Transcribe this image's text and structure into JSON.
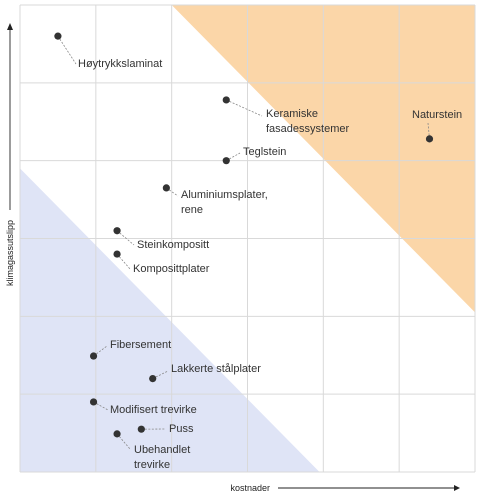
{
  "chart_data": {
    "type": "scatter",
    "title": "",
    "xlabel": "kostnader",
    "ylabel": "klimagassutslipp",
    "xlim": [
      0,
      6
    ],
    "ylim": [
      0,
      6
    ],
    "grid": true,
    "regions": [
      {
        "name": "high",
        "color": "#fbd6a8",
        "polygon": [
          [
            2.0,
            6.0
          ],
          [
            6.0,
            6.0
          ],
          [
            6.0,
            2.05
          ]
        ]
      },
      {
        "name": "low",
        "color": "#dfe4f6",
        "polygon": [
          [
            0.0,
            3.9
          ],
          [
            0.0,
            0.0
          ],
          [
            3.95,
            0.0
          ]
        ]
      }
    ],
    "points": [
      {
        "label": "Høytrykkslaminat",
        "x": 0.5,
        "y": 5.6
      },
      {
        "label": "Keramiske\nfasadessystemer",
        "x": 2.72,
        "y": 4.78
      },
      {
        "label": "Naturstein",
        "x": 5.4,
        "y": 4.28
      },
      {
        "label": "Teglstein",
        "x": 2.72,
        "y": 4.0
      },
      {
        "label": "Aluminiumsplater,\nrene",
        "x": 1.93,
        "y": 3.65
      },
      {
        "label": "Steinkompositt",
        "x": 1.28,
        "y": 3.1
      },
      {
        "label": "Komposittplater",
        "x": 1.28,
        "y": 2.8
      },
      {
        "label": "Fibersement",
        "x": 0.97,
        "y": 1.49
      },
      {
        "label": "Lakkerte stålplater",
        "x": 1.75,
        "y": 1.2
      },
      {
        "label": "Modifisert trevirke",
        "x": 0.97,
        "y": 0.9
      },
      {
        "label": "Puss",
        "x": 1.6,
        "y": 0.55
      },
      {
        "label": "Ubehandlet\ntrevirke",
        "x": 1.28,
        "y": 0.49
      }
    ]
  },
  "colors": {
    "grid": "#d9d9d9",
    "point": "#333333",
    "axis": "#222222"
  }
}
